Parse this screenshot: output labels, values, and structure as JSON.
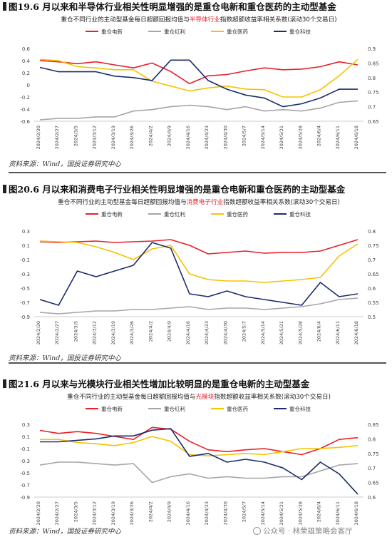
{
  "source_text": "资料来源：Wind，国投证券研究中心",
  "watermark": "公众号 · 林荣雄策略会客厅",
  "colors": {
    "red": "#e8202a",
    "gray": "#a6a6a6",
    "yellow": "#f5c300",
    "navy": "#1b2c6b"
  },
  "figures": [
    {
      "title": "图19.6 月以来和半导体行业相关性明显增强的是重仓电新和重仓医药的主动型基金",
      "subtitle": {
        "pre": "重仓不同行业的主动型基金每日超额回报均值与",
        "hl": "半导体行业",
        "post": "指数超额收益率相关系数(滚动30个交易日)"
      },
      "legend": [
        "重仓电新",
        "重仓红利",
        "重仓医药",
        "重仓科技"
      ],
      "chart_data": {
        "type": "line",
        "x": [
          "2024/2/20",
          "2024/2/27",
          "2024/3/5",
          "2024/3/12",
          "2024/3/19",
          "2024/3/26",
          "2024/4/2",
          "2024/4/9",
          "2024/4/16",
          "2024/4/23",
          "2024/4/30",
          "2024/5/7",
          "2024/5/14",
          "2024/5/21",
          "2024/5/28",
          "2024/6/4",
          "2024/6/11",
          "2024/6/18"
        ],
        "left_axis": {
          "ticks": [
            "0.6",
            "0.4",
            "0.2",
            "0",
            "-0.2",
            "-0.4",
            "-0.6"
          ],
          "range": [
            -0.6,
            0.6
          ]
        },
        "right_axis": {
          "ticks": [
            "0.9",
            "0.85",
            "0.8",
            "0.75",
            "0.7",
            "0.65"
          ],
          "range": [
            0.65,
            0.9
          ]
        },
        "series": [
          {
            "name": "重仓电新",
            "color": "red",
            "axis": "left",
            "values": [
              0.4,
              0.38,
              0.35,
              0.38,
              0.33,
              0.28,
              0.36,
              0.22,
              0.02,
              0.15,
              0.17,
              0.23,
              0.28,
              0.25,
              0.26,
              0.3,
              0.38,
              0.33
            ]
          },
          {
            "name": "重仓红利",
            "color": "gray",
            "axis": "right",
            "values": [
              0.655,
              0.66,
              0.66,
              0.665,
              0.665,
              0.685,
              0.69,
              0.7,
              0.705,
              0.7,
              0.69,
              0.7,
              0.685,
              0.69,
              0.685,
              0.695,
              0.715,
              0.72
            ]
          },
          {
            "name": "重仓医药",
            "color": "yellow",
            "axis": "left",
            "values": [
              0.42,
              0.4,
              0.3,
              0.28,
              0.25,
              0.25,
              0.06,
              -0.02,
              -0.1,
              -0.05,
              -0.02,
              -0.07,
              -0.08,
              -0.2,
              -0.2,
              -0.08,
              0.15,
              0.42
            ]
          },
          {
            "name": "重仓科技",
            "color": "navy",
            "axis": "right",
            "values": [
              0.835,
              0.82,
              0.82,
              0.82,
              0.805,
              0.8,
              0.79,
              0.86,
              0.86,
              0.79,
              0.76,
              0.74,
              0.73,
              0.7,
              0.71,
              0.73,
              0.76,
              0.76
            ]
          }
        ]
      }
    },
    {
      "title": "图20.6 月以来和消费电子行业相关性明显增强的是重仓电新和重仓医药的主动型基金",
      "subtitle": {
        "pre": "重仓不同行业的主动型基金每日超额回报均值与",
        "hl": "消费电子行业",
        "post": "指数超额收益率相关系数(滚动30个交易日)"
      },
      "legend": [
        "重仓电新",
        "重仓红利",
        "重仓医药",
        "重仓科技"
      ],
      "chart_data": {
        "type": "line",
        "x": [
          "2024/2/20",
          "2024/2/27",
          "2024/3/5",
          "2024/3/12",
          "2024/3/19",
          "2024/3/26",
          "2024/4/2",
          "2024/4/9",
          "2024/4/16",
          "2024/4/23",
          "2024/4/30",
          "2024/5/7",
          "2024/5/14",
          "2024/5/21",
          "2024/5/28",
          "2024/6/4",
          "2024/6/11",
          "2024/6/18"
        ],
        "left_axis": {
          "ticks": [
            "0.3",
            "0.1",
            "-0.1",
            "-0.3",
            "-0.5",
            "-0.7",
            "-0.9"
          ],
          "range": [
            -0.9,
            0.3
          ]
        },
        "right_axis": {
          "ticks": [
            "0.8",
            "0.75",
            "0.7",
            "0.65",
            "0.6",
            "0.55",
            "0.5"
          ],
          "range": [
            0.5,
            0.8
          ]
        },
        "series": [
          {
            "name": "重仓电新",
            "color": "red",
            "axis": "left",
            "values": [
              0.15,
              0.14,
              0.15,
              0.16,
              0.14,
              0.15,
              0.16,
              0.18,
              0.1,
              -0.02,
              0.0,
              0.02,
              -0.01,
              0.0,
              0.0,
              0.02,
              0.1,
              0.18
            ]
          },
          {
            "name": "重仓红利",
            "color": "gray",
            "axis": "right",
            "values": [
              0.515,
              0.51,
              0.515,
              0.52,
              0.52,
              0.525,
              0.525,
              0.53,
              0.535,
              0.525,
              0.53,
              0.53,
              0.525,
              0.53,
              0.535,
              0.545,
              0.56,
              0.565
            ]
          },
          {
            "name": "重仓医药",
            "color": "yellow",
            "axis": "left",
            "values": [
              0.16,
              0.15,
              0.14,
              0.08,
              0.0,
              -0.1,
              0.05,
              0.1,
              -0.3,
              -0.38,
              -0.4,
              -0.4,
              -0.42,
              -0.4,
              -0.38,
              -0.35,
              -0.05,
              0.12
            ]
          },
          {
            "name": "重仓科技",
            "color": "navy",
            "axis": "right",
            "values": [
              0.56,
              0.54,
              0.66,
              0.64,
              0.66,
              0.68,
              0.76,
              0.74,
              0.58,
              0.57,
              0.59,
              0.57,
              0.56,
              0.55,
              0.54,
              0.62,
              0.57,
              0.58
            ]
          }
        ]
      }
    },
    {
      "title": "图21.6 月以来与光模块行业相关性增加比较明显的是重仓电新的主动型基金",
      "subtitle": {
        "pre": "重仓不同行业的主动型基金每日超额回报均值与",
        "hl": "光模块",
        "post": "指数超额收益率相关系数(滚动30个交易日)"
      },
      "legend": [
        "重仓电新",
        "重仓红利",
        "重仓医药",
        "重仓科技"
      ],
      "chart_data": {
        "type": "line",
        "x": [
          "2024/2/20",
          "2024/2/27",
          "2024/3/5",
          "2024/3/12",
          "2024/3/19",
          "2024/3/26",
          "2024/4/2",
          "2024/4/9",
          "2024/4/16",
          "2024/4/23",
          "2024/4/30",
          "2024/5/7",
          "2024/5/14",
          "2024/5/21",
          "2024/5/28",
          "2024/6/4",
          "2024/6/11",
          "2024/6/18"
        ],
        "left_axis": {
          "ticks": [
            "0.3",
            "0.1",
            "-0.1",
            "-0.3",
            "-0.5",
            "-0.7",
            "-0.9"
          ],
          "range": [
            -0.9,
            0.3
          ]
        },
        "right_axis": {
          "ticks": [
            "0.85",
            "0.8",
            "0.75",
            "0.7",
            "0.65",
            "0.6"
          ],
          "range": [
            0.6,
            0.85
          ]
        },
        "series": [
          {
            "name": "重仓电新",
            "color": "red",
            "axis": "left",
            "values": [
              0.2,
              0.15,
              0.18,
              0.15,
              0.1,
              0.05,
              0.25,
              0.22,
              0.02,
              -0.12,
              -0.15,
              -0.12,
              -0.1,
              -0.15,
              -0.2,
              -0.1,
              0.05,
              0.08
            ]
          },
          {
            "name": "重仓红利",
            "color": "gray",
            "axis": "right",
            "values": [
              0.71,
              0.72,
              0.72,
              0.715,
              0.71,
              0.715,
              0.65,
              0.67,
              0.68,
              0.665,
              0.67,
              0.665,
              0.665,
              0.67,
              0.67,
              0.69,
              0.71,
              0.715
            ]
          },
          {
            "name": "重仓医药",
            "color": "yellow",
            "axis": "left",
            "values": [
              0.05,
              0.05,
              0.0,
              -0.02,
              -0.05,
              0.0,
              0.1,
              0.02,
              -0.2,
              -0.22,
              -0.2,
              -0.18,
              -0.2,
              -0.15,
              -0.1,
              -0.1,
              -0.08,
              -0.05
            ]
          },
          {
            "name": "重仓科技",
            "color": "navy",
            "axis": "right",
            "values": [
              0.79,
              0.79,
              0.795,
              0.8,
              0.81,
              0.81,
              0.83,
              0.835,
              0.74,
              0.75,
              0.72,
              0.73,
              0.72,
              0.7,
              0.66,
              0.72,
              0.68,
              0.61
            ]
          }
        ]
      }
    }
  ]
}
